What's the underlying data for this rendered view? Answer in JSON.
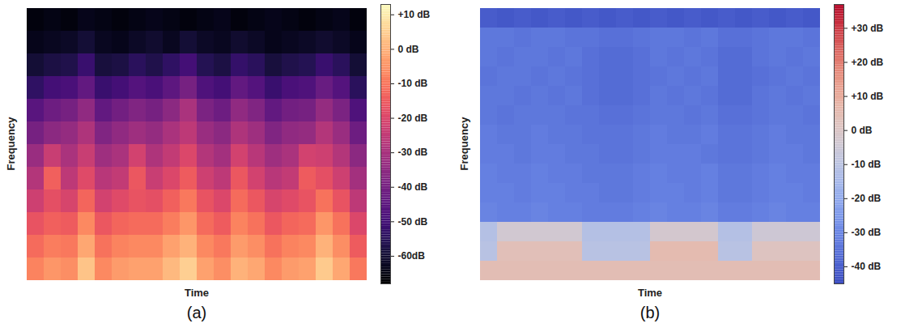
{
  "chart_data": [
    {
      "type": "heatmap",
      "title": "(a)",
      "x_label": "Time",
      "y_label": "Frequency",
      "tick_labels": false,
      "color": "magma",
      "cells": [
        [
          -66,
          -65,
          -66,
          -64,
          -65,
          -66,
          -65,
          -64,
          -65,
          -66,
          -65,
          -64,
          -66,
          -65,
          -64,
          -65,
          -66,
          -65,
          -64,
          -66
        ],
        [
          -64,
          -63,
          -62,
          -60,
          -63,
          -64,
          -62,
          -61,
          -63,
          -60,
          -62,
          -63,
          -61,
          -62,
          -64,
          -63,
          -62,
          -61,
          -62,
          -64
        ],
        [
          -60,
          -58,
          -57,
          -52,
          -59,
          -58,
          -55,
          -57,
          -54,
          -50,
          -56,
          -58,
          -53,
          -55,
          -59,
          -57,
          -56,
          -52,
          -55,
          -60
        ],
        [
          -54,
          -50,
          -49,
          -44,
          -52,
          -50,
          -47,
          -49,
          -45,
          -40,
          -48,
          -50,
          -44,
          -47,
          -52,
          -49,
          -48,
          -43,
          -47,
          -55
        ],
        [
          -46,
          -42,
          -40,
          -35,
          -44,
          -41,
          -38,
          -40,
          -36,
          -30,
          -39,
          -42,
          -35,
          -38,
          -44,
          -41,
          -40,
          -34,
          -39,
          -48
        ],
        [
          -40,
          -36,
          -34,
          -29,
          -38,
          -35,
          -32,
          -34,
          -30,
          -26,
          -33,
          -36,
          -29,
          -32,
          -38,
          -35,
          -34,
          -28,
          -33,
          -42
        ],
        [
          -33,
          -24,
          -30,
          -24,
          -32,
          -30,
          -22,
          -29,
          -25,
          -20,
          -28,
          -31,
          -22,
          -27,
          -32,
          -30,
          -22,
          -23,
          -28,
          -36
        ],
        [
          -28,
          -14,
          -26,
          -19,
          -27,
          -25,
          -16,
          -24,
          -20,
          -15,
          -23,
          -26,
          -16,
          -22,
          -27,
          -25,
          -15,
          -18,
          -23,
          -31
        ],
        [
          -23,
          -18,
          -21,
          -13,
          -22,
          -19,
          -17,
          -18,
          -14,
          -10,
          -17,
          -20,
          -12,
          -16,
          -21,
          -19,
          -17,
          -11,
          -17,
          -26
        ],
        [
          -17,
          -14,
          -15,
          -7,
          -16,
          -13,
          -12,
          -12,
          -9,
          -5,
          -12,
          -15,
          -8,
          -11,
          -16,
          -13,
          -12,
          -5,
          -11,
          -20
        ],
        [
          -12,
          -9,
          -10,
          -2,
          -11,
          -8,
          -7,
          -7,
          -3,
          0,
          -7,
          -10,
          -4,
          -6,
          -11,
          -8,
          -7,
          0,
          -6,
          -15
        ],
        [
          -8,
          -5,
          -6,
          3,
          -7,
          -4,
          -3,
          -3,
          1,
          5,
          -3,
          -6,
          0,
          -2,
          -7,
          -4,
          -3,
          4,
          -2,
          -10
        ]
      ],
      "colorbar": {
        "range": [
          -68,
          13
        ],
        "ticks": [
          {
            "value": 10,
            "label": "+10 dB"
          },
          {
            "value": 0,
            "label": "0 dB"
          },
          {
            "value": -10,
            "label": "-10 dB"
          },
          {
            "value": -20,
            "label": "-20 dB"
          },
          {
            "value": -30,
            "label": "-30 dB"
          },
          {
            "value": -40,
            "label": "-40 dB"
          },
          {
            "value": -50,
            "label": "-50 dB"
          },
          {
            "value": -60,
            "label": "-60dB"
          }
        ]
      }
    },
    {
      "type": "heatmap",
      "title": "(b)",
      "x_label": "Time",
      "y_label": "Frequency",
      "tick_labels": false,
      "color": "coolwarm",
      "cells": [
        [
          -41,
          -42,
          -41,
          -42,
          -41,
          -42,
          -41,
          -42,
          -41,
          -42,
          -41,
          -42,
          -41,
          -42,
          -41,
          -42,
          -41,
          -42,
          -41,
          -42
        ],
        [
          -34,
          -34,
          -35,
          -34,
          -34,
          -35,
          -35,
          -36,
          -36,
          -35,
          -34,
          -34,
          -35,
          -34,
          -36,
          -36,
          -35,
          -34,
          -34,
          -35
        ],
        [
          -34,
          -35,
          -34,
          -34,
          -35,
          -34,
          -36,
          -37,
          -37,
          -36,
          -34,
          -35,
          -34,
          -35,
          -37,
          -37,
          -35,
          -34,
          -35,
          -34
        ],
        [
          -35,
          -34,
          -34,
          -35,
          -34,
          -35,
          -36,
          -37,
          -37,
          -36,
          -35,
          -34,
          -35,
          -34,
          -37,
          -37,
          -36,
          -35,
          -34,
          -35
        ],
        [
          -34,
          -34,
          -35,
          -34,
          -35,
          -34,
          -36,
          -37,
          -37,
          -36,
          -34,
          -35,
          -34,
          -35,
          -37,
          -37,
          -35,
          -34,
          -35,
          -34
        ],
        [
          -34,
          -35,
          -34,
          -34,
          -34,
          -35,
          -35,
          -36,
          -36,
          -35,
          -34,
          -34,
          -35,
          -34,
          -36,
          -36,
          -35,
          -34,
          -34,
          -35
        ],
        [
          -33,
          -34,
          -34,
          -33,
          -34,
          -34,
          -35,
          -35,
          -35,
          -34,
          -33,
          -34,
          -34,
          -33,
          -35,
          -35,
          -34,
          -33,
          -34,
          -34
        ],
        [
          -33,
          -33,
          -34,
          -33,
          -33,
          -34,
          -34,
          -35,
          -35,
          -34,
          -33,
          -33,
          -33,
          -34,
          -35,
          -35,
          -34,
          -33,
          -33,
          -34
        ],
        [
          -32,
          -33,
          -33,
          -32,
          -33,
          -33,
          -34,
          -34,
          -34,
          -33,
          -32,
          -33,
          -33,
          -32,
          -34,
          -34,
          -33,
          -32,
          -33,
          -33
        ],
        [
          -32,
          -32,
          -33,
          -32,
          -32,
          -33,
          -33,
          -34,
          -34,
          -33,
          -32,
          -32,
          -33,
          -32,
          -34,
          -34,
          -33,
          -32,
          -32,
          -33
        ],
        [
          -31,
          -32,
          -32,
          -31,
          -32,
          -32,
          -33,
          -33,
          -33,
          -32,
          -31,
          -32,
          -32,
          -31,
          -33,
          -33,
          -32,
          -31,
          -32,
          -32
        ],
        [
          -12,
          -4,
          -4,
          -4,
          -4,
          -4,
          -12,
          -12,
          -12,
          -12,
          -3,
          -3,
          -3,
          -3,
          -12,
          -12,
          -5,
          -5,
          -5,
          -5
        ],
        [
          -11,
          3,
          3,
          3,
          3,
          3,
          -11,
          -11,
          -11,
          -11,
          5,
          5,
          5,
          5,
          -11,
          -11,
          1,
          1,
          1,
          1
        ],
        [
          4,
          4,
          4,
          4,
          4,
          4,
          4,
          4,
          4,
          4,
          4,
          4,
          4,
          4,
          4,
          4,
          4,
          4,
          4,
          4
        ]
      ],
      "colorbar": {
        "range": [
          -45,
          37
        ],
        "ticks": [
          {
            "value": 30,
            "label": "+30 dB"
          },
          {
            "value": 20,
            "label": "+20 dB"
          },
          {
            "value": 10,
            "label": "+10 dB"
          },
          {
            "value": 0,
            "label": "0 dB"
          },
          {
            "value": -10,
            "label": "-10 dB"
          },
          {
            "value": -20,
            "label": "-20 dB"
          },
          {
            "value": -30,
            "label": "-30 dB"
          },
          {
            "value": -40,
            "label": "-40 dB"
          }
        ]
      }
    }
  ]
}
